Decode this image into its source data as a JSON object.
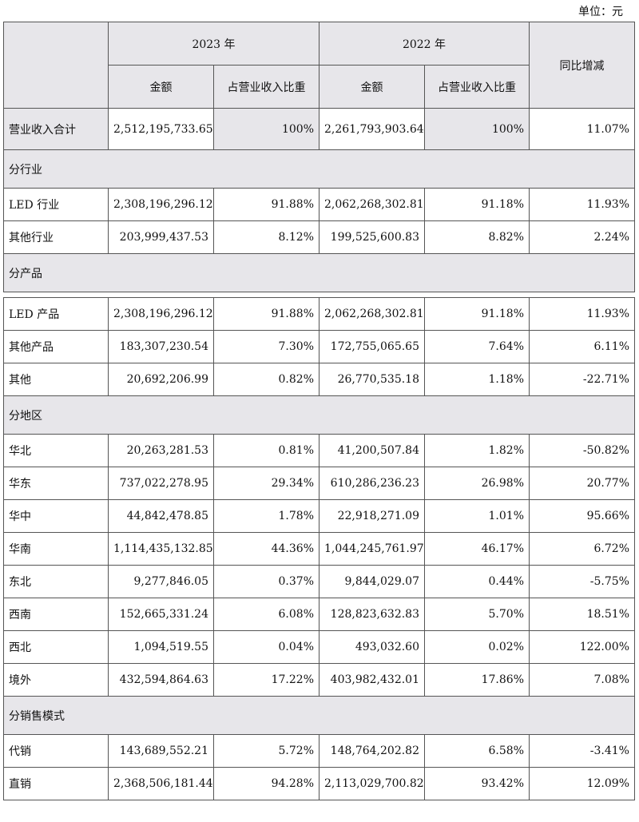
{
  "unit_label": "单位：元",
  "header": {
    "year_2023": "2023 年",
    "year_2022": "2022 年",
    "amount": "金额",
    "ratio": "占营业收入比重",
    "yoy": "同比增减"
  },
  "total": {
    "label": "营业收入合计",
    "amt2023": "2,512,195,733.65",
    "pct2023": "100%",
    "amt2022": "2,261,793,903.64",
    "pct2022": "100%",
    "yoy": "11.07%"
  },
  "sections": [
    {
      "title": "分行业",
      "rows": [
        {
          "label": "LED 行业",
          "amt2023": "2,308,196,296.12",
          "pct2023": "91.88%",
          "amt2022": "2,062,268,302.81",
          "pct2022": "91.18%",
          "yoy": "11.93%"
        },
        {
          "label": "其他行业",
          "amt2023": "203,999,437.53",
          "pct2023": "8.12%",
          "amt2022": "199,525,600.83",
          "pct2022": "8.82%",
          "yoy": "2.24%"
        }
      ]
    },
    {
      "title": "分产品",
      "rows": [
        {
          "label": "LED 产品",
          "amt2023": "2,308,196,296.12",
          "pct2023": "91.88%",
          "amt2022": "2,062,268,302.81",
          "pct2022": "91.18%",
          "yoy": "11.93%"
        },
        {
          "label": "其他产品",
          "amt2023": "183,307,230.54",
          "pct2023": "7.30%",
          "amt2022": "172,755,065.65",
          "pct2022": "7.64%",
          "yoy": "6.11%"
        },
        {
          "label": "其他",
          "amt2023": "20,692,206.99",
          "pct2023": "0.82%",
          "amt2022": "26,770,535.18",
          "pct2022": "1.18%",
          "yoy": "-22.71%"
        }
      ]
    },
    {
      "title": "分地区",
      "rows": [
        {
          "label": "华北",
          "amt2023": "20,263,281.53",
          "pct2023": "0.81%",
          "amt2022": "41,200,507.84",
          "pct2022": "1.82%",
          "yoy": "-50.82%"
        },
        {
          "label": "华东",
          "amt2023": "737,022,278.95",
          "pct2023": "29.34%",
          "amt2022": "610,286,236.23",
          "pct2022": "26.98%",
          "yoy": "20.77%"
        },
        {
          "label": "华中",
          "amt2023": "44,842,478.85",
          "pct2023": "1.78%",
          "amt2022": "22,918,271.09",
          "pct2022": "1.01%",
          "yoy": "95.66%"
        },
        {
          "label": "华南",
          "amt2023": "1,114,435,132.85",
          "pct2023": "44.36%",
          "amt2022": "1,044,245,761.97",
          "pct2022": "46.17%",
          "yoy": "6.72%"
        },
        {
          "label": "东北",
          "amt2023": "9,277,846.05",
          "pct2023": "0.37%",
          "amt2022": "9,844,029.07",
          "pct2022": "0.44%",
          "yoy": "-5.75%"
        },
        {
          "label": "西南",
          "amt2023": "152,665,331.24",
          "pct2023": "6.08%",
          "amt2022": "128,823,632.83",
          "pct2022": "5.70%",
          "yoy": "18.51%"
        },
        {
          "label": "西北",
          "amt2023": "1,094,519.55",
          "pct2023": "0.04%",
          "amt2022": "493,032.60",
          "pct2022": "0.02%",
          "yoy": "122.00%"
        },
        {
          "label": "境外",
          "amt2023": "432,594,864.63",
          "pct2023": "17.22%",
          "amt2022": "403,982,432.01",
          "pct2022": "17.86%",
          "yoy": "7.08%"
        }
      ]
    },
    {
      "title": "分销售模式",
      "rows": [
        {
          "label": "代销",
          "amt2023": "143,689,552.21",
          "pct2023": "5.72%",
          "amt2022": "148,764,202.82",
          "pct2022": "6.58%",
          "yoy": "-3.41%"
        },
        {
          "label": "直销",
          "amt2023": "2,368,506,181.44",
          "pct2023": "94.28%",
          "amt2022": "2,113,029,700.82",
          "pct2022": "93.42%",
          "yoy": "12.09%"
        }
      ]
    }
  ]
}
